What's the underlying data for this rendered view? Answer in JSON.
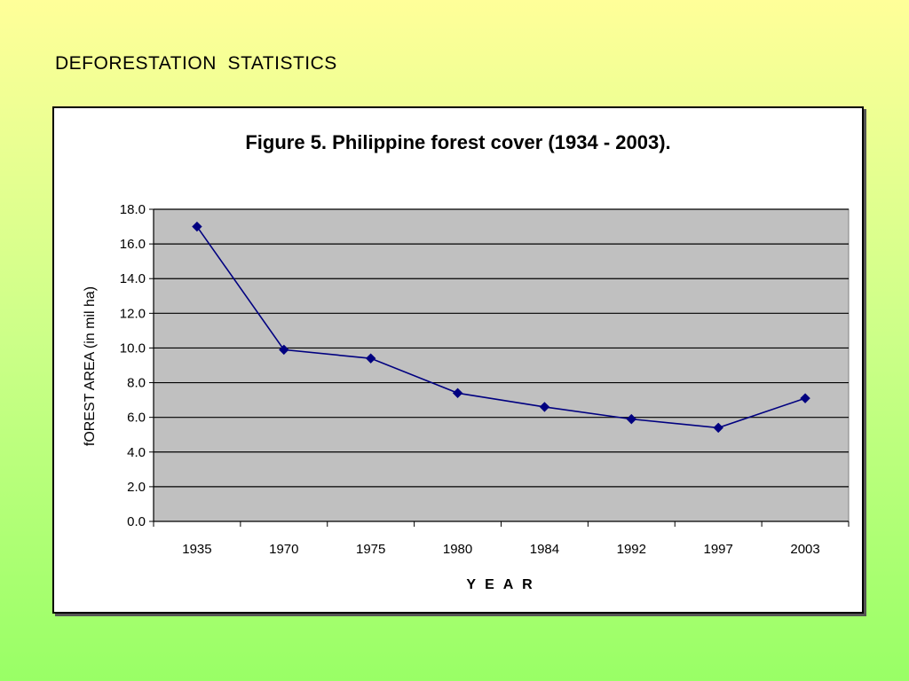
{
  "slide": {
    "title": "DEFORESTATION  STATISTICS"
  },
  "colors": {
    "plot_background": "#c0c0c0",
    "series": "#000080",
    "gridline": "#000000"
  },
  "chart_data": {
    "type": "line",
    "title": "Figure 5. Philippine forest cover (1934 - 2003).",
    "xlabel": "Y E A R",
    "ylabel": "fOREST AREA (in mil ha)",
    "categories": [
      "1935",
      "1970",
      "1975",
      "1980",
      "1984",
      "1992",
      "1997",
      "2003"
    ],
    "series": [
      {
        "values": [
          17.0,
          9.9,
          9.4,
          7.4,
          6.6,
          5.9,
          5.4,
          7.1
        ]
      }
    ],
    "ylim": [
      0,
      18
    ],
    "yticks": [
      "0.0",
      "2.0",
      "4.0",
      "6.0",
      "8.0",
      "10.0",
      "12.0",
      "14.0",
      "16.0",
      "18.0"
    ],
    "grid": true,
    "legend": "none",
    "marker": "diamond"
  }
}
